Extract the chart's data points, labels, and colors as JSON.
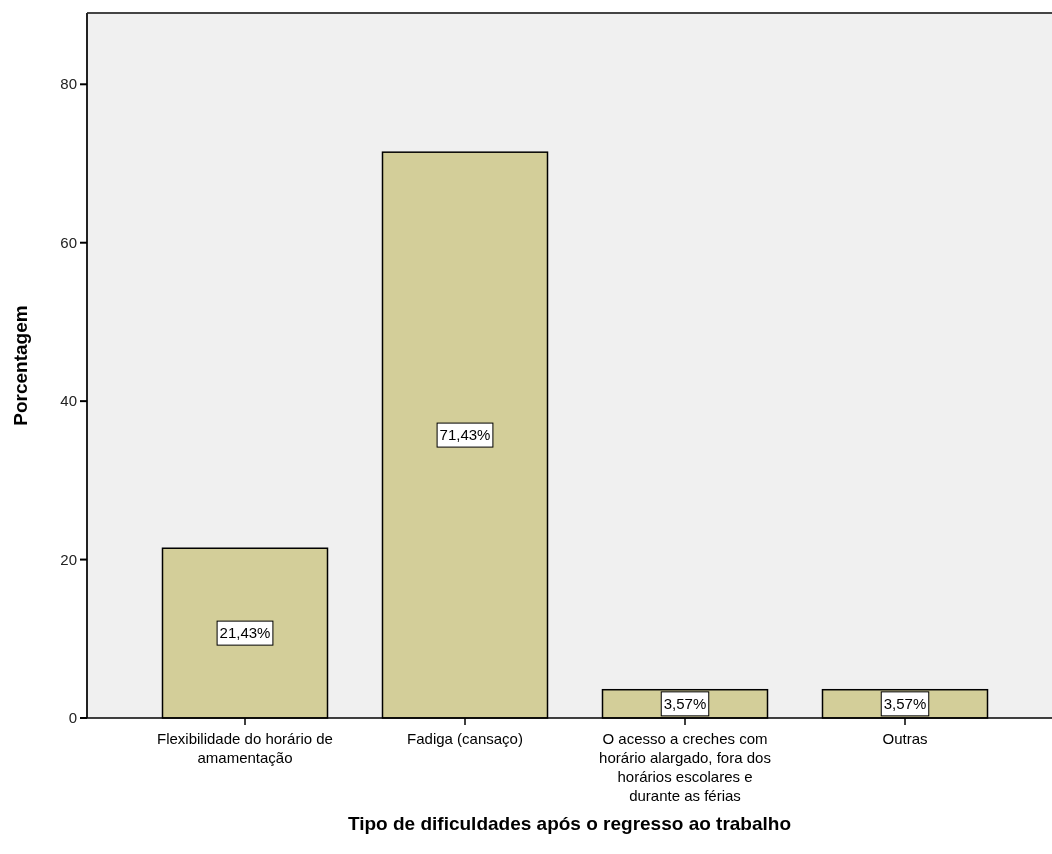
{
  "chart_data": {
    "type": "bar",
    "xlabel": "Tipo de dificuldades após o regresso ao trabalho",
    "ylabel": "Porcentagem",
    "categories": [
      "Flexibilidade do horário de amamentação",
      "Fadiga (cansaço)",
      "O acesso a creches com horário alargado, fora dos horários escolares e durante as férias",
      "Outras"
    ],
    "values": [
      21.43,
      71.43,
      3.57,
      3.57
    ],
    "value_labels": [
      "21,43%",
      "71,43%",
      "3,57%",
      "3,57%"
    ],
    "color": "#d3ce99",
    "ylim": [
      0,
      89
    ],
    "yticks": [
      0,
      20,
      40,
      60,
      80
    ],
    "grid": false
  }
}
